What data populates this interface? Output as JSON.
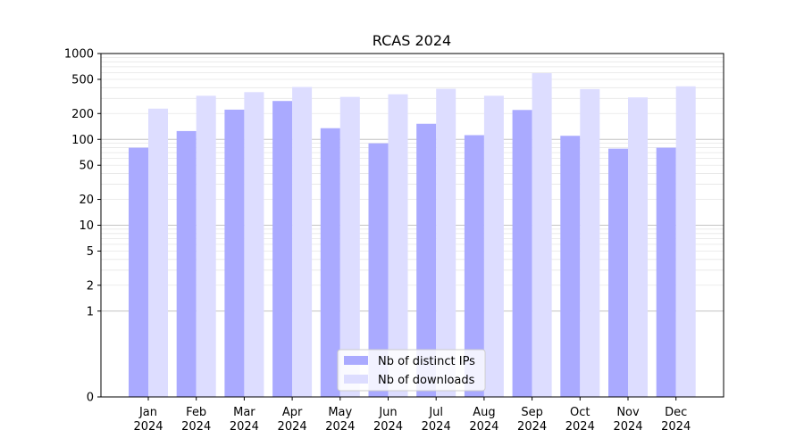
{
  "chart_data": {
    "type": "bar",
    "title": "RCAS 2024",
    "xlabel": "",
    "ylabel": "",
    "y_scale": "symlog",
    "y_ticks": [
      "0",
      "1",
      "2",
      "5",
      "10",
      "20",
      "50",
      "100",
      "200",
      "500",
      "1000"
    ],
    "categories": [
      [
        "Jan",
        "2024"
      ],
      [
        "Feb",
        "2024"
      ],
      [
        "Mar",
        "2024"
      ],
      [
        "Apr",
        "2024"
      ],
      [
        "May",
        "2024"
      ],
      [
        "Jun",
        "2024"
      ],
      [
        "Jul",
        "2024"
      ],
      [
        "Aug",
        "2024"
      ],
      [
        "Sep",
        "2024"
      ],
      [
        "Oct",
        "2024"
      ],
      [
        "Nov",
        "2024"
      ],
      [
        "Dec",
        "2024"
      ]
    ],
    "series": [
      {
        "name": "Nb of distinct IPs",
        "color": "#aaaaff",
        "values": [
          80,
          125,
          222,
          280,
          135,
          90,
          152,
          112,
          220,
          110,
          78,
          80
        ]
      },
      {
        "name": "Nb of downloads",
        "color": "#ddddff",
        "values": [
          228,
          322,
          355,
          408,
          312,
          335,
          388,
          322,
          590,
          385,
          308,
          415
        ]
      }
    ],
    "legend_position": "bottom-center",
    "grid": true
  }
}
